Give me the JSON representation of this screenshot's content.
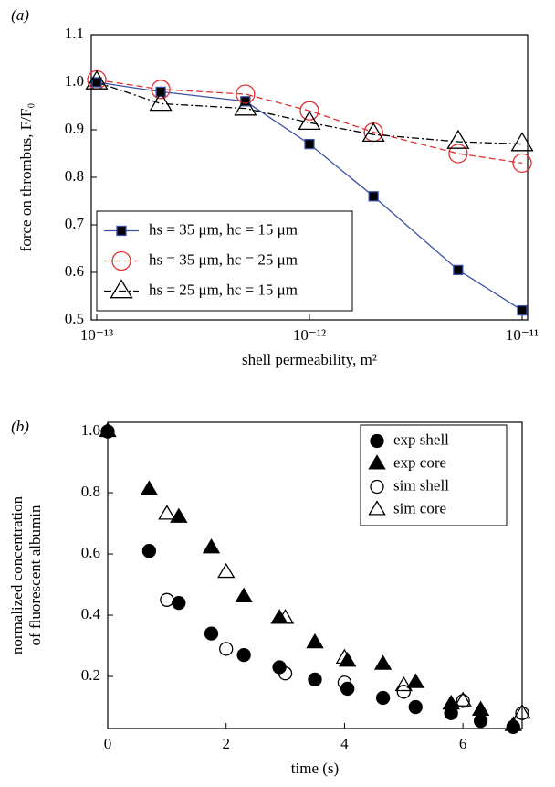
{
  "chart_data": [
    {
      "type": "line",
      "annotation": "(a)",
      "x_label": "shell permeability, m²",
      "y_label": "force on thrombus, F/F₀",
      "xlog": true,
      "x": [
        1e-13,
        2e-13,
        5e-13,
        1e-12,
        2e-12,
        5e-12,
        1e-11
      ],
      "xlim": [
        1e-13,
        1e-11
      ],
      "xticks": [
        {
          "value": 1e-13,
          "label": "10⁻¹³"
        },
        {
          "value": 1e-12,
          "label": "10⁻¹²"
        },
        {
          "value": 1e-11,
          "label": "10⁻¹¹"
        }
      ],
      "ylim": [
        0.5,
        1.1
      ],
      "yticks": [
        0.5,
        0.6,
        0.7,
        0.8,
        0.9,
        {
          "value": 1,
          "label": "1.0"
        },
        1.1
      ],
      "legend": "lower left",
      "series": [
        {
          "name": "hs = 35 μm, hc = 15 μm",
          "color": "#3a4fa8",
          "marker": "square",
          "filled": true,
          "linestyle": "solid",
          "values": [
            1.0,
            0.98,
            0.96,
            0.87,
            0.76,
            0.605,
            0.52
          ]
        },
        {
          "name": "hs = 35 μm, hc = 25 μm",
          "color": "#e03030",
          "marker": "circle",
          "filled": false,
          "linestyle": "dashed",
          "values": [
            1.005,
            0.985,
            0.975,
            0.94,
            0.895,
            0.85,
            0.83
          ]
        },
        {
          "name": "hs = 25 μm, hc = 15 μm",
          "color": "#000000",
          "marker": "triangle",
          "filled": false,
          "linestyle": "dashdot",
          "values": [
            1.0,
            0.955,
            0.945,
            0.915,
            0.89,
            0.875,
            0.87
          ]
        }
      ]
    },
    {
      "type": "scatter",
      "annotation": "(b)",
      "x_label": "time (s)",
      "y_label": [
        "normalized concentration",
        "of fluorescent albumin"
      ],
      "xlim": [
        0,
        7
      ],
      "xticks": [
        0,
        2,
        4,
        6
      ],
      "ylim": [
        0.03,
        1.03
      ],
      "yticks": [
        0.2,
        0.4,
        0.6,
        0.8,
        {
          "value": 1,
          "label": "1.0"
        }
      ],
      "legend": "upper right",
      "series": [
        {
          "name": "exp shell",
          "color": "#000000",
          "marker": "circle",
          "filled": true,
          "x": [
            0,
            0.7,
            1.2,
            1.75,
            2.3,
            2.9,
            3.5,
            4.05,
            4.65,
            5.2,
            5.8,
            6.3,
            6.85
          ],
          "values": [
            1.0,
            0.61,
            0.44,
            0.34,
            0.27,
            0.23,
            0.19,
            0.16,
            0.13,
            0.1,
            0.08,
            0.055,
            0.035
          ]
        },
        {
          "name": "exp core",
          "color": "#000000",
          "marker": "triangle",
          "filled": true,
          "x": [
            0,
            0.7,
            1.2,
            1.75,
            2.3,
            2.9,
            3.5,
            4.05,
            4.65,
            5.2,
            5.8,
            6.3,
            6.85
          ],
          "values": [
            1.0,
            0.81,
            0.72,
            0.62,
            0.46,
            0.39,
            0.31,
            0.25,
            0.24,
            0.18,
            0.11,
            0.09,
            0.04
          ]
        },
        {
          "name": "sim shell",
          "color": "#000000",
          "marker": "circle",
          "filled": false,
          "x": [
            1,
            2,
            3,
            4,
            5,
            6,
            7
          ],
          "values": [
            0.45,
            0.29,
            0.21,
            0.18,
            0.15,
            0.12,
            0.08
          ]
        },
        {
          "name": "sim core",
          "color": "#000000",
          "marker": "triangle",
          "filled": false,
          "x": [
            1,
            2,
            3,
            4,
            5,
            6,
            7
          ],
          "values": [
            0.73,
            0.54,
            0.39,
            0.26,
            0.17,
            0.12,
            0.08
          ]
        }
      ]
    }
  ]
}
